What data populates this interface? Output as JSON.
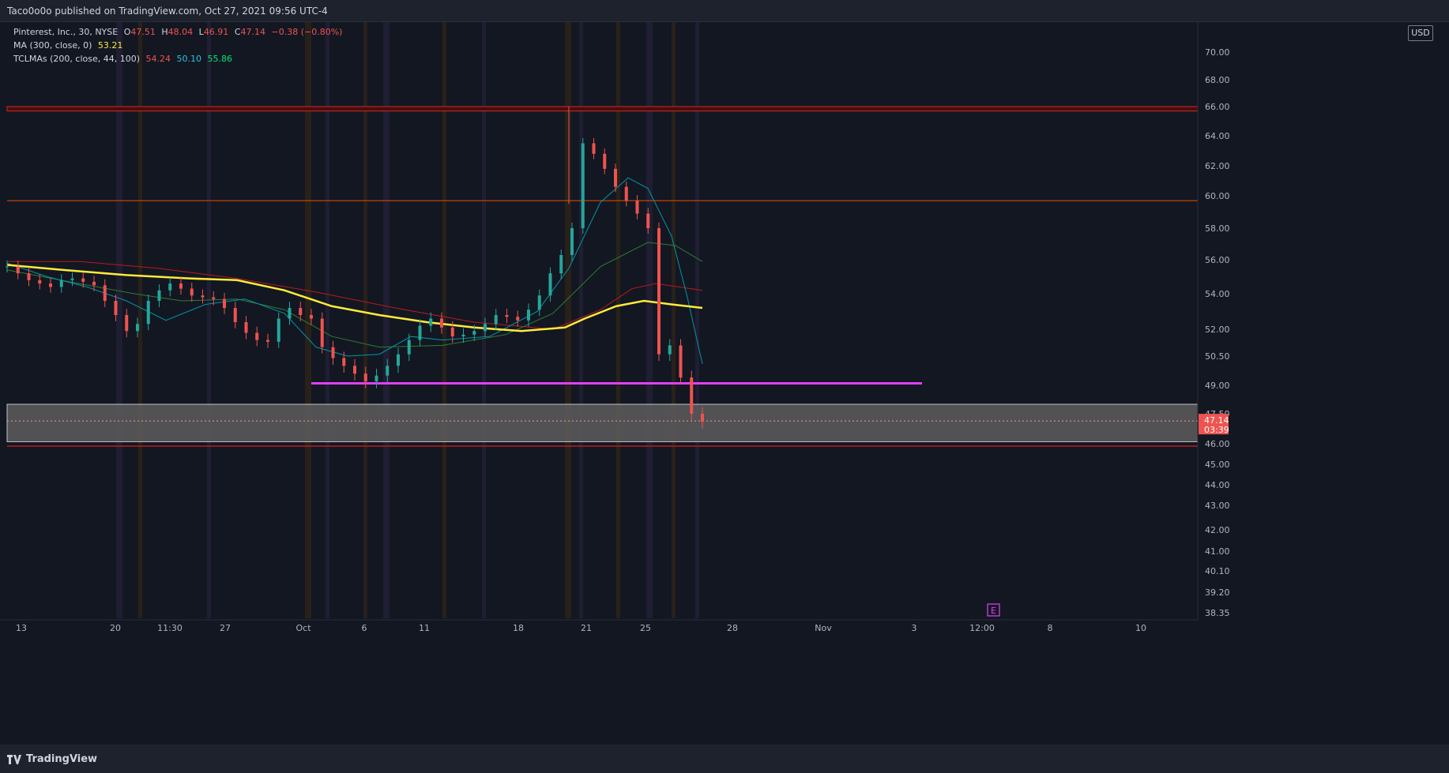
{
  "header": {
    "published": "Taco0o0o published on TradingView.com, Oct 27, 2021 09:56 UTC-4"
  },
  "footer": {
    "brand": "TradingView"
  },
  "legend": {
    "symbol": "Pinterest, Inc., 30, NYSE",
    "o_label": "O",
    "o_value": "47.51",
    "h_label": "H",
    "h_value": "48.04",
    "l_label": "L",
    "l_value": "46.91",
    "c_label": "C",
    "c_value": "47.14",
    "change": "−0.38 (−0.80%)",
    "ma_label": "MA (300, close, 0)",
    "ma_value": "53.21",
    "tcl_label": "TCLMAs (200, close, 44, 100)",
    "tcl_values": [
      "54.24",
      "50.10",
      "55.86"
    ]
  },
  "colors": {
    "up": "#26a69a",
    "down": "#ef5350",
    "ma300": "#ffeb3b",
    "red_ma": "#b71c1c",
    "green_ma": "#2e7d32",
    "teal_ma": "#0097a7",
    "support": "#e040fb"
  },
  "chart_data": {
    "type": "candlestick",
    "currency": "USD",
    "ylim": [
      38.35,
      71.0
    ],
    "y_ticks": [
      "70.00",
      "68.00",
      "66.00",
      "64.00",
      "62.00",
      "60.00",
      "58.00",
      "56.00",
      "54.00",
      "52.00",
      "50.50",
      "49.00",
      "47.50",
      "46.00",
      "45.00",
      "44.00",
      "43.00",
      "42.00",
      "41.00",
      "40.10",
      "39.20",
      "38.35"
    ],
    "x_tick_labels": [
      "13",
      "20",
      "11:30",
      "27",
      "Oct",
      "6",
      "11",
      "18",
      "21",
      "25",
      "28",
      "Nov",
      "3",
      "12:00",
      "8",
      "10"
    ],
    "last_price": "47.14",
    "countdown": "03:39",
    "close_series": [
      55.6,
      55.2,
      54.8,
      54.6,
      54.4,
      54.8,
      54.9,
      54.7,
      54.5,
      53.6,
      52.8,
      51.9,
      52.3,
      53.6,
      54.2,
      54.6,
      54.3,
      53.9,
      53.8,
      53.7,
      53.2,
      52.4,
      51.8,
      51.4,
      51.3,
      52.6,
      53.2,
      52.8,
      52.6,
      51.0,
      50.4,
      50.0,
      49.6,
      49.2,
      49.5,
      50.0,
      50.6,
      51.4,
      52.2,
      52.6,
      52.1,
      51.6,
      51.7,
      51.9,
      52.3,
      52.8,
      52.7,
      52.5,
      53.1,
      53.9,
      55.2,
      56.3,
      58.0,
      63.5,
      62.8,
      61.8,
      60.6,
      59.7,
      58.9,
      58.0,
      50.6,
      51.1,
      49.4,
      47.5,
      47.1
    ],
    "horizontal_levels": [
      {
        "value": 66.0,
        "color": "#b71c1c",
        "style": "zone-top"
      },
      {
        "value": 65.7,
        "color": "#b71c1c",
        "style": "zone-bottom"
      },
      {
        "value": 59.7,
        "color": "#e65100",
        "style": "line"
      },
      {
        "value": 49.1,
        "color": "#e040fb",
        "style": "support"
      },
      {
        "value": 48.0,
        "color": "#ffffff",
        "style": "zone-top"
      },
      {
        "value": 46.1,
        "color": "#ffffff",
        "style": "zone-bottom"
      },
      {
        "value": 46.0,
        "color": "#b71c1c",
        "style": "line"
      }
    ],
    "earnings_marker": "E",
    "series": [
      {
        "name": "MA (300, close, 0)",
        "value": 53.21
      }
    ]
  }
}
